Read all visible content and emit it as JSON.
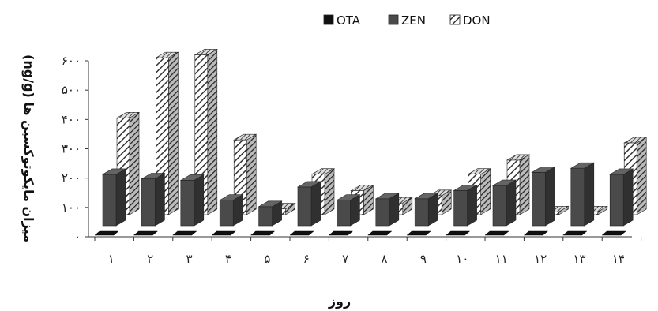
{
  "chart_data": {
    "type": "bar",
    "categories": [
      "۱",
      "۲",
      "۳",
      "۴",
      "۵",
      "۶",
      "۷",
      "۸",
      "۹",
      "۱۰",
      "۱۱",
      "۱۲",
      "۱۳",
      "۱۴"
    ],
    "series": [
      {
        "name": "OTA",
        "values": [
          0,
          0,
          0,
          0,
          0,
          0,
          0,
          0,
          0,
          0,
          0,
          0,
          0,
          0
        ],
        "color": "#111111",
        "pattern": "solid"
      },
      {
        "name": "ZEN",
        "values": [
          175,
          160,
          155,
          87,
          65,
          132,
          87,
          92,
          92,
          120,
          137,
          182,
          196,
          175
        ],
        "color": "#4a4a4a",
        "pattern": "solid"
      },
      {
        "name": "DON",
        "values": [
          330,
          535,
          545,
          255,
          20,
          138,
          82,
          40,
          65,
          138,
          186,
          10,
          10,
          245
        ],
        "color": "#ffffff",
        "pattern": "hatch"
      }
    ],
    "title": "",
    "xlabel": "روز",
    "ylabel": "میزان مایکوتوکسین ها (ng/g)",
    "yticks": [
      "۰",
      "۱۰۰",
      "۲۰۰",
      "۳۰۰",
      "۴۰۰",
      "۵۰۰",
      "۶۰۰"
    ],
    "ylim": [
      0,
      600
    ],
    "grid": false,
    "legend_position": "top"
  }
}
